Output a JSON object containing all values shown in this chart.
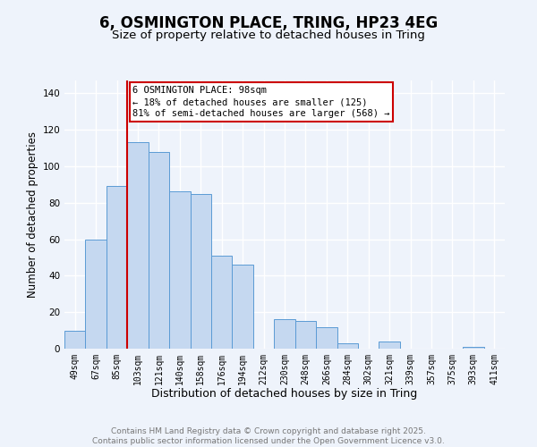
{
  "title": "6, OSMINGTON PLACE, TRING, HP23 4EG",
  "subtitle": "Size of property relative to detached houses in Tring",
  "xlabel": "Distribution of detached houses by size in Tring",
  "ylabel": "Number of detached properties",
  "bar_labels": [
    "49sqm",
    "67sqm",
    "85sqm",
    "103sqm",
    "121sqm",
    "140sqm",
    "158sqm",
    "176sqm",
    "194sqm",
    "212sqm",
    "230sqm",
    "248sqm",
    "266sqm",
    "284sqm",
    "302sqm",
    "321sqm",
    "339sqm",
    "357sqm",
    "375sqm",
    "393sqm",
    "411sqm"
  ],
  "bar_values": [
    10,
    60,
    89,
    113,
    108,
    86,
    85,
    51,
    46,
    0,
    16,
    15,
    12,
    3,
    0,
    4,
    0,
    0,
    0,
    1,
    0
  ],
  "bar_color": "#c5d8f0",
  "bar_edge_color": "#5b9bd5",
  "vline_index": 2.5,
  "vline_color": "#cc0000",
  "annotation_text": "6 OSMINGTON PLACE: 98sqm\n← 18% of detached houses are smaller (125)\n81% of semi-detached houses are larger (568) →",
  "annotation_box_color": "#ffffff",
  "annotation_box_edge": "#cc0000",
  "ylim": [
    0,
    147
  ],
  "yticks": [
    0,
    20,
    40,
    60,
    80,
    100,
    120,
    140
  ],
  "footnote": "Contains HM Land Registry data © Crown copyright and database right 2025.\nContains public sector information licensed under the Open Government Licence v3.0.",
  "background_color": "#eef3fb",
  "grid_color": "#ffffff",
  "title_fontsize": 12,
  "subtitle_fontsize": 9.5,
  "xlabel_fontsize": 9,
  "ylabel_fontsize": 8.5,
  "tick_fontsize": 7,
  "footnote_fontsize": 6.5,
  "annotation_fontsize": 7.5
}
